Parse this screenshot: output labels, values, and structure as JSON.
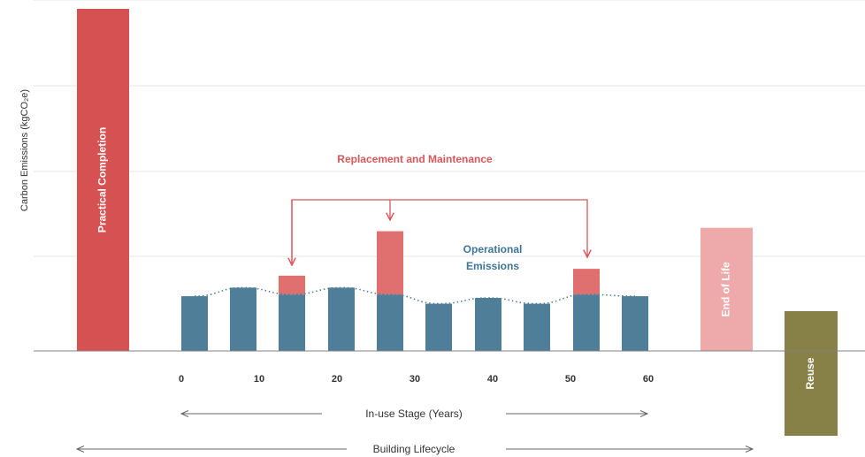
{
  "chart_data": {
    "type": "bar",
    "ylabel": "Carbon Emissions (kgCO₂e)",
    "ylim": [
      0,
      100
    ],
    "grid": true,
    "x_ticks": [
      "0",
      "10",
      "20",
      "30",
      "40",
      "50",
      "60"
    ],
    "annotations": {
      "replacement": "Replacement and Maintenance",
      "operational_line1": "Operational",
      "operational_line2": "Emissions",
      "in_use_stage": "In-use Stage (Years)",
      "building_lifecycle": "Building Lifecycle"
    },
    "stages": [
      {
        "label": "Practical Completion",
        "value": 100
      },
      {
        "label": "End of Life",
        "value": 36
      },
      {
        "label": "Reuse",
        "value": -25
      }
    ],
    "series": [
      {
        "name": "Operational Emissions",
        "values": [
          16,
          18.5,
          16.5,
          18.5,
          16.5,
          13.8,
          15.5,
          13.8,
          16.5,
          16
        ]
      },
      {
        "name": "Replacement and Maintenance",
        "values": [
          0,
          0,
          5.5,
          0,
          18.5,
          0,
          0,
          0,
          7.5,
          0
        ]
      }
    ],
    "colors": {
      "operational": "#4f7f98",
      "replacement": "#e06f6f",
      "practical_completion": "#d65152",
      "end_of_life": "#eeaaaa",
      "reuse": "#878148",
      "annotation_red": "#d9565a",
      "annotation_blue": "#3f7596",
      "grid": "#e6e6e6",
      "axis": "#808080"
    }
  }
}
